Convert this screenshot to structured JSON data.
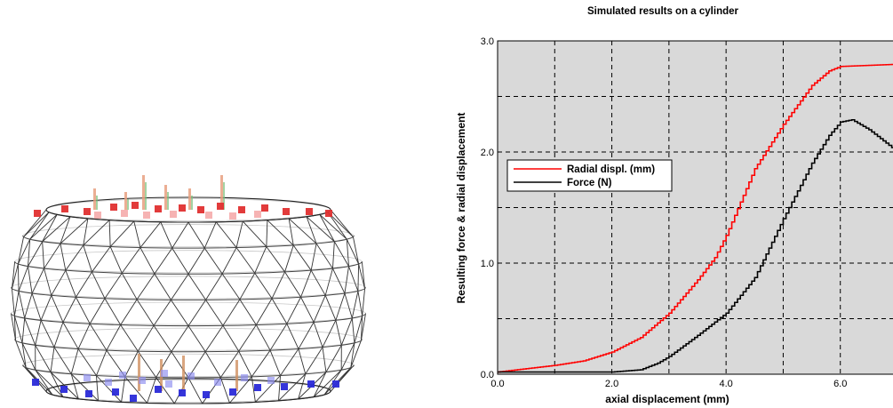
{
  "figure": {
    "left_panel": "cylinder-wireframe-mesh"
  },
  "chart_data": {
    "type": "line",
    "title": "Simulated results on a cylinder",
    "xlabel": "axial displacement (mm)",
    "ylabel": "Resulting force & radial displacement",
    "xlim": [
      0,
      7
    ],
    "ylim": [
      0,
      3
    ],
    "x_ticks": [
      0,
      2,
      4,
      6
    ],
    "x_tick_labels": [
      "0.0",
      "2.0",
      "4.0",
      "6.0"
    ],
    "y_ticks": [
      0,
      1,
      2,
      3
    ],
    "y_tick_labels": [
      "0.0",
      "1.0",
      "2.0",
      "3.0"
    ],
    "grid": true,
    "grid_style": "dashed",
    "legend_position": "left-middle",
    "background_color": "#d9d9d9",
    "series": [
      {
        "name": "Radial displ. (mm)",
        "color": "#ff0000",
        "x": [
          0,
          0.5,
          1.0,
          1.5,
          2.0,
          2.5,
          3.0,
          3.5,
          3.8,
          4.0,
          4.5,
          5.0,
          5.5,
          5.8,
          6.0,
          7.0
        ],
        "y": [
          0.02,
          0.05,
          0.08,
          0.12,
          0.2,
          0.33,
          0.55,
          0.85,
          1.05,
          1.25,
          1.85,
          2.25,
          2.6,
          2.73,
          2.77,
          2.79
        ]
      },
      {
        "name": "Force (N)",
        "color": "#000000",
        "x": [
          0,
          2.0,
          2.5,
          2.8,
          3.0,
          3.5,
          4.0,
          4.5,
          5.0,
          5.5,
          5.8,
          6.0,
          6.2,
          6.5,
          7.0
        ],
        "y": [
          0.02,
          0.02,
          0.04,
          0.1,
          0.16,
          0.35,
          0.55,
          0.87,
          1.4,
          1.9,
          2.15,
          2.27,
          2.29,
          2.2,
          2.0
        ]
      }
    ]
  }
}
